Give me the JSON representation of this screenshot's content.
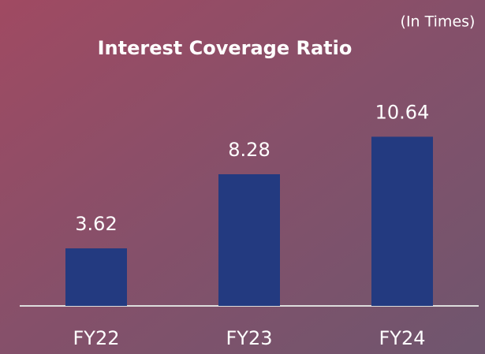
{
  "chart_data": {
    "type": "bar",
    "title": "Interest Coverage Ratio",
    "subtitle": "(In Times)",
    "categories": [
      "FY22",
      "FY23",
      "FY24"
    ],
    "values": [
      3.62,
      8.28,
      10.64
    ],
    "value_labels": [
      "3.62",
      "8.28",
      "10.64"
    ],
    "color": "#233a80",
    "ylim": [
      0,
      12
    ]
  }
}
